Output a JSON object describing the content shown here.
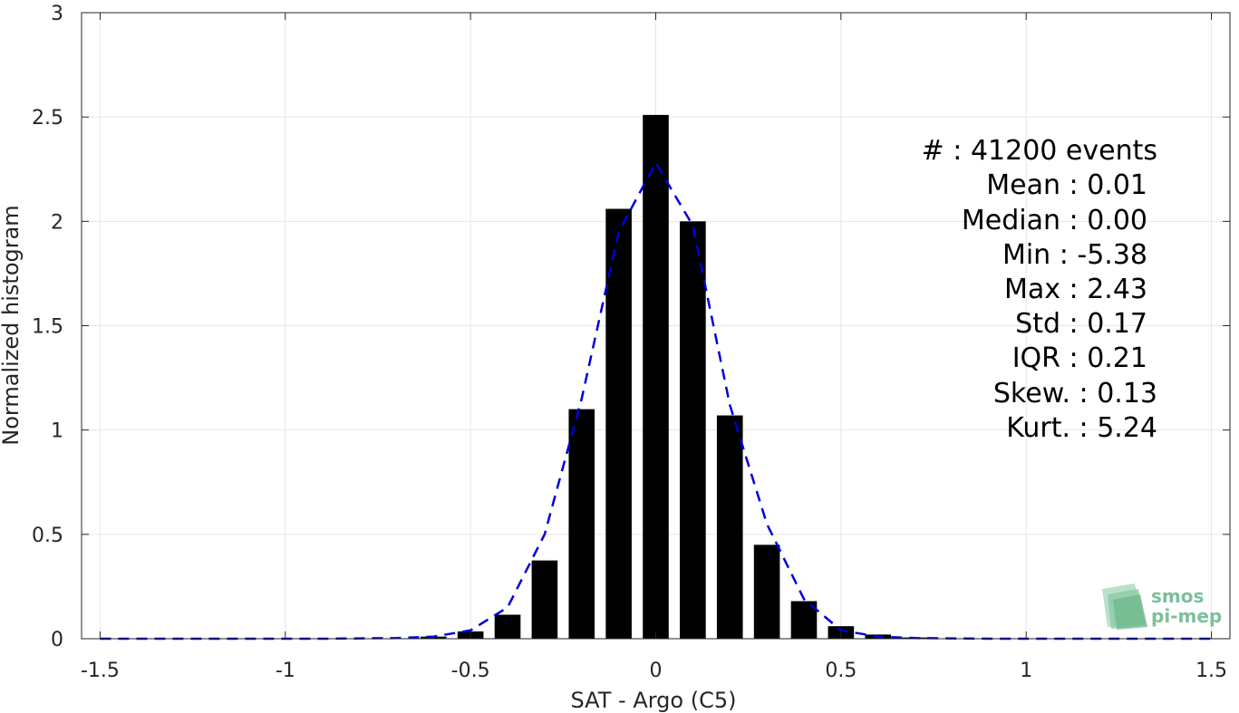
{
  "chart_data": {
    "type": "bar",
    "xlabel": "SAT - Argo (C5)",
    "ylabel": "Normalized histogram",
    "xlim": [
      -1.55,
      1.55
    ],
    "ylim": [
      0,
      3
    ],
    "grid": true,
    "x_ticks": [
      -1.5,
      -1,
      -0.5,
      0,
      0.5,
      1,
      1.5
    ],
    "x_tick_labels": [
      "-1.5",
      "-1",
      "-0.5",
      "0",
      "0.5",
      "1",
      "1.5"
    ],
    "y_ticks": [
      0,
      0.5,
      1,
      1.5,
      2,
      2.5,
      3
    ],
    "y_tick_labels": [
      "0",
      "0.5",
      "1",
      "1.5",
      "2",
      "2.5",
      "3"
    ],
    "bar_width": 0.07,
    "bar_color": "#000000",
    "series": [
      {
        "kind": "bars",
        "x": [
          -1.5,
          -1.4,
          -1.3,
          -1.2,
          -1.1,
          -1.0,
          -0.9,
          -0.8,
          -0.7,
          -0.6,
          -0.5,
          -0.4,
          -0.3,
          -0.2,
          -0.1,
          0.0,
          0.1,
          0.2,
          0.3,
          0.4,
          0.5,
          0.6,
          0.7,
          0.8,
          0.9,
          1.0,
          1.1,
          1.2,
          1.3,
          1.4,
          1.5
        ],
        "values": [
          0,
          0,
          0,
          0,
          0,
          0,
          0,
          0,
          0.002,
          0.01,
          0.035,
          0.115,
          0.375,
          1.1,
          2.06,
          2.51,
          2.0,
          1.07,
          0.45,
          0.18,
          0.06,
          0.02,
          0.006,
          0.002,
          0,
          0,
          0,
          0,
          0,
          0,
          0
        ]
      },
      {
        "kind": "line",
        "style": "dashed",
        "color": "#0000dd",
        "x": [
          -1.5,
          -1.3,
          -1.1,
          -0.9,
          -0.7,
          -0.6,
          -0.5,
          -0.4,
          -0.3,
          -0.2,
          -0.1,
          0.0,
          0.1,
          0.2,
          0.3,
          0.4,
          0.5,
          0.6,
          0.7,
          0.9,
          1.1,
          1.3,
          1.5
        ],
        "values": [
          0,
          0,
          0,
          0,
          0.003,
          0.01,
          0.04,
          0.15,
          0.5,
          1.15,
          1.95,
          2.28,
          1.98,
          1.12,
          0.55,
          0.19,
          0.04,
          0.01,
          0.003,
          0,
          0,
          0,
          0
        ]
      }
    ]
  },
  "stats": {
    "lines": [
      "#  : 41200 events",
      "Mean : 0.01",
      "Median : 0.00",
      "Min : -5.38",
      "Max : 2.43",
      "Std : 0.17",
      "IQR : 0.21",
      "Skew. : 0.13",
      "Kurt. : 5.24"
    ]
  },
  "logo": {
    "line1": "smos",
    "line2": "pi-mep",
    "color": "#7dbf9a"
  }
}
